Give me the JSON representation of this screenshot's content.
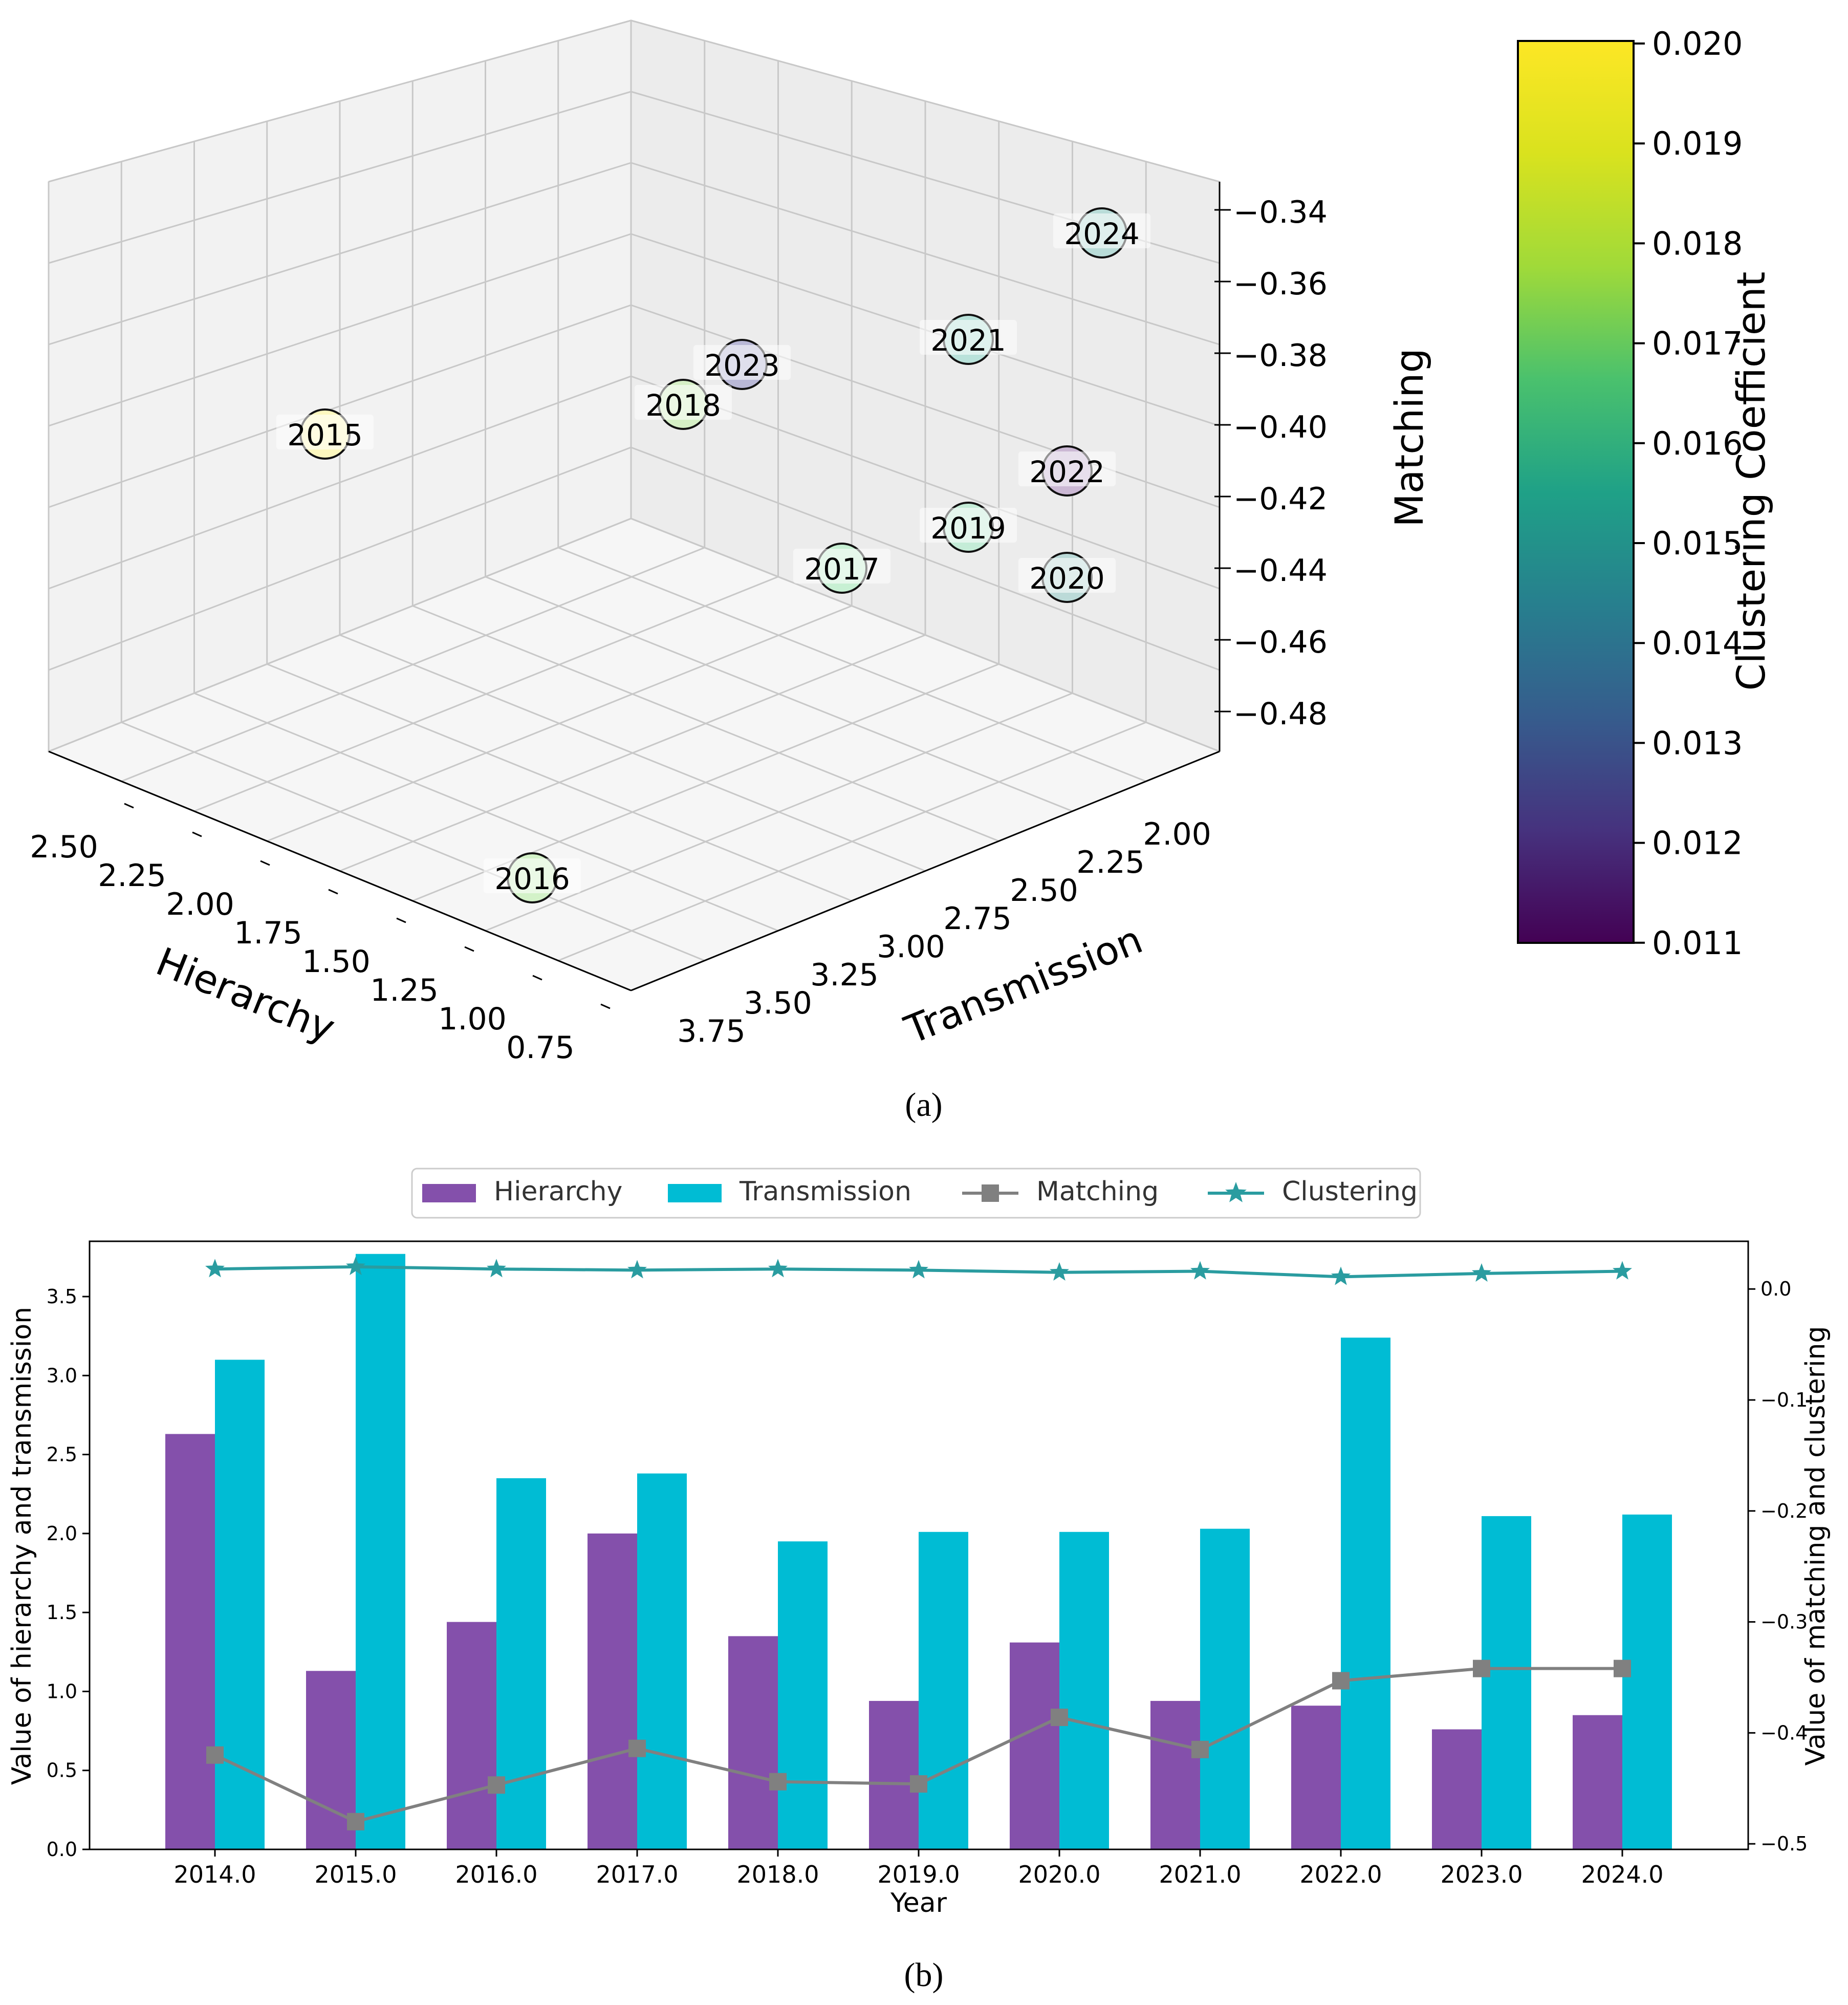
{
  "panel_a": {
    "caption": "(a)",
    "axes": {
      "xlabel": "Hierarchy",
      "ylabel": "Transmission",
      "zlabel": "Matching",
      "x_ticks": [
        "2.50",
        "2.25",
        "2.00",
        "1.75",
        "1.50",
        "1.25",
        "1.00",
        "0.75"
      ],
      "y_ticks": [
        "2.00",
        "2.25",
        "2.50",
        "2.75",
        "3.00",
        "3.25",
        "3.50",
        "3.75"
      ],
      "z_ticks": [
        "−0.34",
        "−0.36",
        "−0.38",
        "−0.40",
        "−0.42",
        "−0.44",
        "−0.46",
        "−0.48"
      ]
    },
    "colorbar": {
      "label": "Clustering Coefficient",
      "ticks": [
        "0.020",
        "0.019",
        "0.018",
        "0.017",
        "0.016",
        "0.015",
        "0.014",
        "0.013",
        "0.012",
        "0.011"
      ],
      "range": [
        0.011,
        0.02
      ],
      "colormap": "viridis"
    },
    "points": [
      {
        "label": "2024",
        "color": "#b9dcd8"
      },
      {
        "label": "2021",
        "color": "#b9e2da"
      },
      {
        "label": "2023",
        "color": "#b9b8d6"
      },
      {
        "label": "2018",
        "color": "#d6f0c6"
      },
      {
        "label": "2015",
        "color": "#fdf8bf"
      },
      {
        "label": "2022",
        "color": "#cbb8d4"
      },
      {
        "label": "2019",
        "color": "#c4ecd7"
      },
      {
        "label": "2017",
        "color": "#c7f0d3"
      },
      {
        "label": "2020",
        "color": "#bbdad8"
      },
      {
        "label": "2016",
        "color": "#d3f2c8"
      }
    ]
  },
  "panel_b": {
    "caption": "(b)",
    "chart_data": {
      "type": "bar",
      "xlabel": "Year",
      "ylabel": "Value of hierarchy and transmission",
      "ylabel_right": "Value of matching and clustering",
      "categories": [
        "2014.0",
        "2015.0",
        "2016.0",
        "2017.0",
        "2018.0",
        "2019.0",
        "2020.0",
        "2021.0",
        "2022.0",
        "2023.0",
        "2024.0"
      ],
      "ylim": [
        0,
        3.85
      ],
      "ylim_right": [
        -0.505,
        0.043
      ],
      "y_ticks": [
        "0.0",
        "0.5",
        "1.0",
        "1.5",
        "2.0",
        "2.5",
        "3.0",
        "3.5"
      ],
      "y_ticks_right": [
        "0.0",
        "−0.1",
        "−0.2",
        "−0.3",
        "−0.4",
        "−0.5"
      ],
      "legend_position": "top-center",
      "series": [
        {
          "name": "Hierarchy",
          "kind": "bar",
          "axis": "left",
          "color": "#8450ab",
          "values": [
            2.63,
            1.13,
            1.44,
            2.0,
            1.35,
            0.94,
            1.31,
            0.94,
            0.91,
            0.76,
            0.85
          ]
        },
        {
          "name": "Transmission",
          "kind": "bar",
          "axis": "left",
          "color": "#00bcd4",
          "values": [
            3.1,
            3.77,
            2.35,
            2.38,
            1.95,
            2.01,
            2.01,
            2.03,
            3.24,
            2.11,
            2.12
          ]
        },
        {
          "name": "Matching",
          "kind": "line",
          "axis": "right",
          "color": "#808080",
          "marker": "square",
          "values": [
            -0.42,
            -0.48,
            -0.447,
            -0.414,
            -0.444,
            -0.446,
            -0.386,
            -0.415,
            -0.353,
            -0.342,
            -0.342
          ]
        },
        {
          "name": "Clustering",
          "kind": "line",
          "axis": "right",
          "color": "#2a9ca0",
          "marker": "star",
          "values": [
            0.018,
            0.02,
            0.018,
            0.017,
            0.018,
            0.017,
            0.015,
            0.016,
            0.011,
            0.014,
            0.016
          ]
        }
      ]
    }
  }
}
